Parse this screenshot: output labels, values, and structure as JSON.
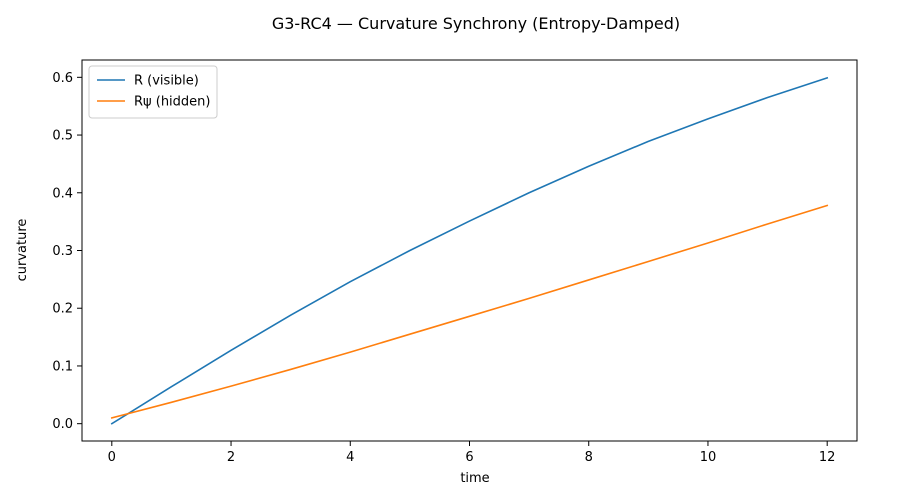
{
  "chart_data": {
    "type": "line",
    "title": "G3-RC4 — Curvature Synchrony (Entropy-Damped)",
    "xlabel": "time",
    "ylabel": "curvature",
    "xlim": [
      -0.5,
      12.5
    ],
    "ylim": [
      -0.03,
      0.63
    ],
    "xticks": [
      0,
      2,
      4,
      6,
      8,
      10,
      12
    ],
    "xtick_labels": [
      "0",
      "2",
      "4",
      "6",
      "8",
      "10",
      "12"
    ],
    "yticks": [
      0.0,
      0.1,
      0.2,
      0.3,
      0.4,
      0.5,
      0.6
    ],
    "ytick_labels": [
      "0.0",
      "0.1",
      "0.2",
      "0.3",
      "0.4",
      "0.5",
      "0.6"
    ],
    "grid": false,
    "legend_position": "top-left",
    "x": [
      0,
      1,
      2,
      3,
      4,
      5,
      6,
      7,
      8,
      9,
      10,
      11,
      12
    ],
    "series": [
      {
        "name": "R (visible)",
        "color": "#1f77b4",
        "values": [
          0.0,
          0.064,
          0.127,
          0.188,
          0.246,
          0.3,
          0.351,
          0.4,
          0.446,
          0.489,
          0.528,
          0.565,
          0.599
        ]
      },
      {
        "name": "Rψ (hidden)",
        "color": "#ff7f0e",
        "values": [
          0.01,
          0.037,
          0.065,
          0.094,
          0.124,
          0.155,
          0.186,
          0.217,
          0.249,
          0.281,
          0.313,
          0.346,
          0.378
        ]
      }
    ]
  }
}
